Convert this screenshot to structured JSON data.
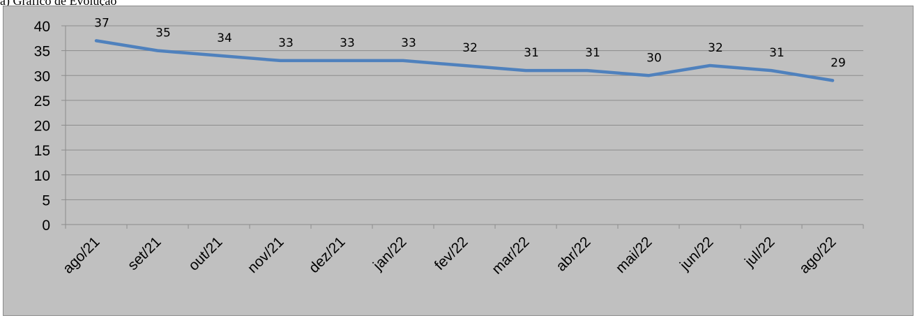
{
  "caption": "a)  Gráfico de Evolução",
  "chart_data": {
    "type": "line",
    "categories": [
      "ago/21",
      "set/21",
      "out/21",
      "nov/21",
      "dez/21",
      "jan/22",
      "fev/22",
      "mar/22",
      "abr/22",
      "mai/22",
      "jun/22",
      "jul/22",
      "ago/22"
    ],
    "series": [
      {
        "values": [
          37,
          35,
          34,
          33,
          33,
          33,
          32,
          31,
          31,
          30,
          32,
          31,
          29
        ]
      }
    ],
    "ylim": [
      0,
      40
    ],
    "yticks": [
      0,
      5,
      10,
      15,
      20,
      25,
      30,
      35,
      40
    ],
    "grid": true,
    "legend": "none",
    "title": "",
    "xlabel": "",
    "ylabel": "",
    "colors": {
      "line": "#4f81bd",
      "background": "#c0c0c0",
      "grid": "#8c8c8c",
      "axis": "#8c8c8c"
    }
  }
}
